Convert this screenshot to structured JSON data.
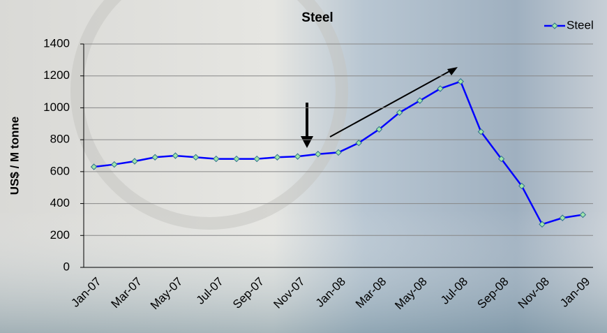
{
  "chart_data": {
    "type": "line",
    "title": "Steel",
    "y_label": "US$ /  M tonne",
    "categories": [
      "Jan-07",
      null,
      "Mar-07",
      null,
      "May-07",
      null,
      "Jul-07",
      null,
      "Sep-07",
      null,
      "Nov-07",
      null,
      "Jan-08",
      null,
      "Mar-08",
      null,
      "May-08",
      null,
      "Jul-08",
      null,
      "Sep-08",
      null,
      "Nov-08",
      null,
      "Jan-09"
    ],
    "series": [
      {
        "name": "Steel",
        "color": "#0000ff",
        "values": [
          630,
          645,
          665,
          690,
          700,
          690,
          680,
          680,
          680,
          690,
          695,
          710,
          720,
          780,
          865,
          970,
          1045,
          1120,
          1165,
          850,
          680,
          510,
          270,
          310,
          330
        ]
      }
    ],
    "ylim": [
      0,
      1400
    ],
    "yticks": [
      0,
      200,
      400,
      600,
      800,
      1000,
      1200,
      1400
    ],
    "grid": true,
    "legend": "top-right"
  }
}
